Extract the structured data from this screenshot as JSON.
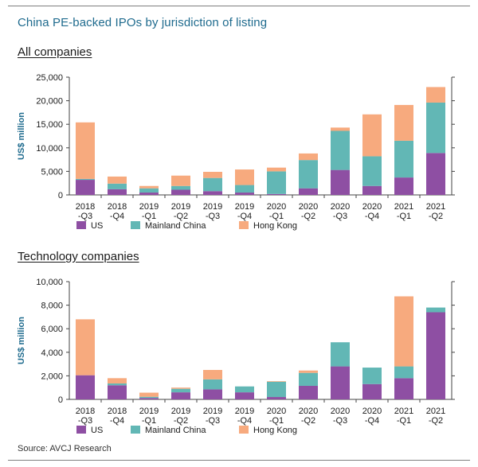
{
  "figure_title": "China PE-backed IPOs by jurisdiction of listing",
  "source": "Source: AVCJ Research",
  "colors": {
    "us": "#8e4fa3",
    "mainland": "#62b7b5",
    "hk": "#f7aa7e",
    "axis": "#444444",
    "title": "#1f6b8e"
  },
  "chart_data": [
    {
      "type": "bar",
      "stacked": true,
      "title": "All companies",
      "ylabel": "US$ million",
      "ylim": [
        0,
        25000
      ],
      "yticks": [
        "0",
        "5,000",
        "10,000",
        "15,000",
        "20,000",
        "25,000"
      ],
      "ytick_values": [
        0,
        5000,
        10000,
        15000,
        20000,
        25000
      ],
      "categories": [
        [
          "2018",
          "-Q3"
        ],
        [
          "2018",
          "-Q4"
        ],
        [
          "2019",
          "-Q1"
        ],
        [
          "2019",
          "-Q2"
        ],
        [
          "2019",
          "-Q3"
        ],
        [
          "2019",
          "-Q4"
        ],
        [
          "2020",
          "-Q1"
        ],
        [
          "2020",
          "-Q2"
        ],
        [
          "2020",
          "-Q3"
        ],
        [
          "2020",
          "-Q4"
        ],
        [
          "2021",
          "-Q1"
        ],
        [
          "2021",
          "-Q2"
        ]
      ],
      "series": [
        {
          "name": "US",
          "values": [
            3200,
            1200,
            500,
            1100,
            800,
            500,
            200,
            1400,
            5300,
            1900,
            3700,
            8900
          ]
        },
        {
          "name": "Mainland China",
          "values": [
            200,
            1200,
            900,
            800,
            2800,
            1600,
            4800,
            6000,
            8300,
            6300,
            7800,
            10700
          ]
        },
        {
          "name": "Hong Kong",
          "values": [
            12000,
            1500,
            500,
            2200,
            1300,
            3300,
            800,
            1400,
            700,
            8900,
            7600,
            3300
          ]
        }
      ],
      "legend_position": "bottom",
      "grid": false
    },
    {
      "type": "bar",
      "stacked": true,
      "title": "Technology companies",
      "ylabel": "US$ million",
      "ylim": [
        0,
        10000
      ],
      "yticks": [
        "0",
        "2,000",
        "4,000",
        "6,000",
        "8,000",
        "10,000"
      ],
      "ytick_values": [
        0,
        2000,
        4000,
        6000,
        8000,
        10000
      ],
      "categories": [
        [
          "2018",
          "-Q3"
        ],
        [
          "2018",
          "-Q4"
        ],
        [
          "2019",
          "-Q1"
        ],
        [
          "2019",
          "-Q2"
        ],
        [
          "2019",
          "-Q3"
        ],
        [
          "2019",
          "-Q4"
        ],
        [
          "2020",
          "-Q1"
        ],
        [
          "2020",
          "-Q2"
        ],
        [
          "2020",
          "-Q3"
        ],
        [
          "2020",
          "-Q4"
        ],
        [
          "2021",
          "-Q1"
        ],
        [
          "2021",
          "-Q2"
        ]
      ],
      "series": [
        {
          "name": "US",
          "values": [
            2050,
            1200,
            120,
            600,
            850,
            600,
            200,
            1150,
            2800,
            1300,
            1800,
            7400
          ]
        },
        {
          "name": "Mainland China",
          "values": [
            0,
            150,
            100,
            300,
            850,
            500,
            1300,
            1100,
            2050,
            1400,
            1000,
            400
          ]
        },
        {
          "name": "Hong Kong",
          "values": [
            4750,
            450,
            350,
            100,
            800,
            0,
            50,
            200,
            0,
            0,
            5950,
            0
          ]
        }
      ],
      "legend_position": "bottom",
      "grid": false
    }
  ]
}
